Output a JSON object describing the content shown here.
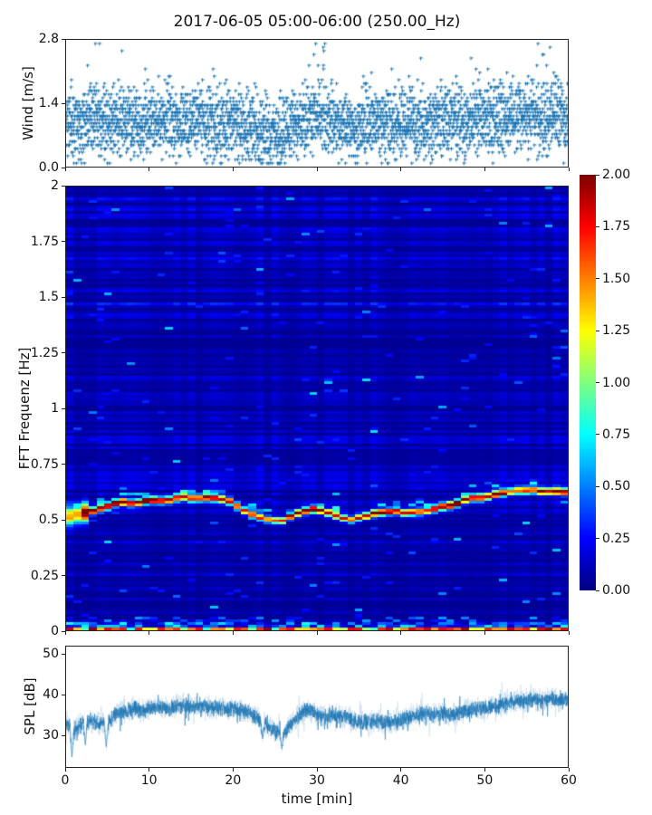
{
  "figure": {
    "title": "2017-06-05 05:00-06:00 (250.00_Hz)",
    "background": "#ffffff",
    "accent_color": "#1f77b4"
  },
  "chart_data": [
    {
      "id": "wind",
      "type": "scatter",
      "marker": "plus",
      "color": "#1f77b4",
      "ylabel": "Wind [m/s]",
      "ylim": [
        0.0,
        2.8
      ],
      "yticks": [
        {
          "v": 0.0,
          "label": "0.0"
        },
        {
          "v": 1.4,
          "label": "1.4"
        },
        {
          "v": 2.8,
          "label": "2.8"
        }
      ],
      "xlim": [
        0,
        60
      ],
      "xticks": [
        0,
        10,
        20,
        30,
        40,
        50,
        60
      ],
      "xticklabels_visible": false,
      "grid": false,
      "samples_per_minute": 60,
      "quantize_step": 0.08,
      "spread": 0.75,
      "seed": 11,
      "gust_minutes": [
        3,
        29,
        30,
        56,
        57
      ],
      "mean_by_minute": [
        1.0,
        0.95,
        1.0,
        1.1,
        1.05,
        0.95,
        1.0,
        1.05,
        1.0,
        0.95,
        1.0,
        1.05,
        1.1,
        1.0,
        0.95,
        1.0,
        1.05,
        1.0,
        0.9,
        0.85,
        0.95,
        0.9,
        0.85,
        0.8,
        0.75,
        0.7,
        0.8,
        0.9,
        1.0,
        1.1,
        1.15,
        1.05,
        0.95,
        0.9,
        0.85,
        0.9,
        0.95,
        1.0,
        0.95,
        0.9,
        1.0,
        1.05,
        1.0,
        0.95,
        1.0,
        1.05,
        1.0,
        0.95,
        1.0,
        1.05,
        1.1,
        1.0,
        1.05,
        1.1,
        1.1,
        1.15,
        1.1,
        1.05,
        1.05,
        1.1,
        1.0
      ]
    },
    {
      "id": "spectrogram",
      "type": "heatmap",
      "colormap": "jet",
      "clim": [
        0,
        2
      ],
      "ylabel": "FFT Frequenz [Hz]",
      "ylim": [
        0,
        2
      ],
      "yticks": [
        {
          "v": 0,
          "label": "0"
        },
        {
          "v": 0.25,
          "label": "0.25"
        },
        {
          "v": 0.5,
          "label": "0.5"
        },
        {
          "v": 0.75,
          "label": "0.75"
        },
        {
          "v": 1,
          "label": "1"
        },
        {
          "v": 1.25,
          "label": "1.25"
        },
        {
          "v": 1.5,
          "label": "1.5"
        },
        {
          "v": 1.75,
          "label": "1.75"
        },
        {
          "v": 2,
          "label": "2"
        }
      ],
      "xlim": [
        0,
        60
      ],
      "xticks": [
        0,
        10,
        20,
        30,
        40,
        50,
        60
      ],
      "xticklabels_visible": false,
      "seed": 23,
      "background_level_range": [
        0.02,
        0.3
      ],
      "ridge": {
        "t": [
          0,
          2,
          4,
          6,
          8,
          10,
          12,
          14,
          16,
          18,
          20,
          22,
          24,
          26,
          28,
          30,
          32,
          34,
          36,
          38,
          40,
          42,
          44,
          46,
          48,
          50,
          52,
          54,
          56,
          58,
          60
        ],
        "f": [
          0.51,
          0.53,
          0.55,
          0.57,
          0.58,
          0.585,
          0.59,
          0.6,
          0.6,
          0.595,
          0.575,
          0.53,
          0.5,
          0.49,
          0.54,
          0.55,
          0.52,
          0.5,
          0.52,
          0.53,
          0.535,
          0.54,
          0.55,
          0.57,
          0.59,
          0.605,
          0.615,
          0.625,
          0.63,
          0.63,
          0.625
        ],
        "amp": [
          1.6,
          1.7,
          1.8,
          1.9,
          2.0,
          2.0,
          2.0,
          2.0,
          2.0,
          1.9,
          1.8,
          1.7,
          1.6,
          1.6,
          1.8,
          1.7,
          1.7,
          1.6,
          1.8,
          1.9,
          1.9,
          1.9,
          1.9,
          2.0,
          2.0,
          2.0,
          2.0,
          2.0,
          2.0,
          2.0,
          2.0
        ],
        "sigma_hz": 0.011
      },
      "dc_component_freq": 0.015,
      "colorbar": {
        "ticks": [
          {
            "v": 0.0,
            "label": "0.00"
          },
          {
            "v": 0.25,
            "label": "0.25"
          },
          {
            "v": 0.5,
            "label": "0.50"
          },
          {
            "v": 0.75,
            "label": "0.75"
          },
          {
            "v": 1.0,
            "label": "1.00"
          },
          {
            "v": 1.25,
            "label": "1.25"
          },
          {
            "v": 1.5,
            "label": "1.50"
          },
          {
            "v": 1.75,
            "label": "1.75"
          },
          {
            "v": 2.0,
            "label": "2.00"
          }
        ]
      }
    },
    {
      "id": "spl",
      "type": "line",
      "color": "#1f77b4",
      "ylabel": "SPL [dB]",
      "xlabel": "time [min]",
      "ylim": [
        22,
        52
      ],
      "yticks": [
        {
          "v": 30,
          "label": "30"
        },
        {
          "v": 40,
          "label": "40"
        },
        {
          "v": 50,
          "label": "50"
        }
      ],
      "xlim": [
        0,
        60
      ],
      "xticks": [
        {
          "v": 0,
          "label": "0"
        },
        {
          "v": 10,
          "label": "10"
        },
        {
          "v": 20,
          "label": "20"
        },
        {
          "v": 30,
          "label": "30"
        },
        {
          "v": 40,
          "label": "40"
        },
        {
          "v": 50,
          "label": "50"
        },
        {
          "v": 60,
          "label": "60"
        }
      ],
      "seed": 5,
      "noise_amp": 2.2,
      "mean_by_minute": [
        33,
        31.5,
        33,
        33.5,
        33,
        33,
        35.5,
        36,
        36.5,
        36,
        36.5,
        37,
        36.5,
        37,
        37.5,
        37,
        37.5,
        37,
        36.5,
        36.5,
        36.5,
        36,
        35.5,
        34,
        32.5,
        31,
        30.5,
        33,
        35,
        36.5,
        35,
        34.5,
        35,
        34.5,
        34,
        33.5,
        33,
        33.5,
        33,
        33,
        33.5,
        34.5,
        35,
        35.5,
        35,
        35.5,
        35,
        35.5,
        36,
        36.5,
        36.5,
        37,
        37.5,
        38,
        38.5,
        38.5,
        39,
        38.5,
        39,
        38.5,
        39
      ],
      "dips": [
        {
          "t": 0.7,
          "v": 24.5
        },
        {
          "t": 2.3,
          "v": 27.5
        },
        {
          "t": 4.8,
          "v": 27.0
        },
        {
          "t": 25.8,
          "v": 26.5
        },
        {
          "t": 23.5,
          "v": 29.0
        }
      ]
    }
  ]
}
